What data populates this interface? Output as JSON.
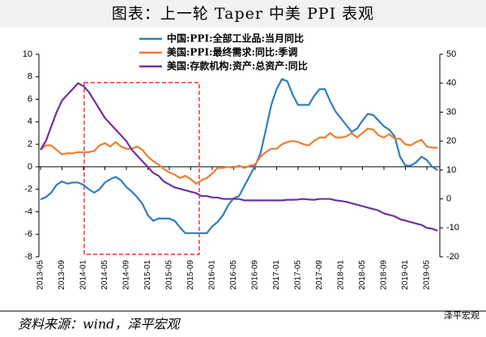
{
  "chart_data": {
    "type": "line",
    "title": "图表：上一轮 Taper 中美 PPI 表观",
    "source": "资料来源：wind，泽平宏观",
    "watermark": "泽平宏观",
    "categories": [
      "2013-05",
      null,
      null,
      null,
      "2013-09",
      null,
      null,
      null,
      "2014-01",
      null,
      null,
      null,
      "2014-05",
      null,
      null,
      null,
      "2014-09",
      null,
      null,
      null,
      "2015-01",
      null,
      null,
      null,
      "2015-05",
      null,
      null,
      null,
      "2015-09",
      null,
      null,
      null,
      "2016-01",
      null,
      null,
      null,
      "2016-05",
      null,
      null,
      null,
      "2016-09",
      null,
      null,
      null,
      "2017-01",
      null,
      null,
      null,
      "2017-05",
      null,
      null,
      null,
      "2017-09",
      null,
      null,
      null,
      "2018-01",
      null,
      null,
      null,
      "2018-05",
      null,
      null,
      null,
      "2018-09",
      null,
      null,
      null,
      "2019-01",
      null,
      null,
      null,
      "2019-05",
      null,
      null
    ],
    "series": [
      {
        "name": "中国:PPI:全部工业品:当月同比",
        "color": "#2e7ebf",
        "values": [
          -2.9,
          -2.7,
          -2.3,
          -1.6,
          -1.3,
          -1.5,
          -1.4,
          -1.4,
          -1.6,
          -2.0,
          -2.3,
          -2.0,
          -1.4,
          -1.1,
          -0.9,
          -1.2,
          -1.8,
          -2.2,
          -2.7,
          -3.3,
          -4.3,
          -4.8,
          -4.6,
          -4.6,
          -4.6,
          -4.8,
          -5.4,
          -5.9,
          -5.9,
          -5.9,
          -5.9,
          -5.9,
          -5.3,
          -4.9,
          -4.3,
          -3.4,
          -2.8,
          -2.6,
          -1.7,
          -0.8,
          0.1,
          1.2,
          3.3,
          5.5,
          6.9,
          7.8,
          7.6,
          6.4,
          5.5,
          5.5,
          5.5,
          6.3,
          6.9,
          6.9,
          5.8,
          4.9,
          4.3,
          3.7,
          3.1,
          3.4,
          4.1,
          4.7,
          4.6,
          4.1,
          3.6,
          3.3,
          2.7,
          0.9,
          0.1,
          0.1,
          0.4,
          0.9,
          0.6,
          0.0,
          -0.3
        ]
      },
      {
        "name": "美国:PPI:最终需求:同比:季调",
        "color": "#ed7d31",
        "values": [
          1.5,
          1.9,
          1.9,
          1.5,
          1.1,
          1.2,
          1.2,
          1.3,
          1.3,
          1.3,
          1.4,
          1.9,
          2.1,
          1.8,
          2.2,
          1.8,
          1.6,
          1.6,
          1.8,
          1.5,
          0.9,
          0.5,
          0.2,
          -0.2,
          -0.5,
          -0.7,
          -1.0,
          -0.8,
          -1.1,
          -1.5,
          -1.2,
          -1.0,
          -0.6,
          -0.1,
          -0.1,
          0.0,
          -0.1,
          0.1,
          -0.1,
          0.1,
          0.2,
          0.9,
          1.3,
          1.6,
          1.6,
          2.0,
          2.2,
          2.3,
          2.2,
          2.0,
          1.9,
          2.3,
          2.6,
          2.6,
          3.0,
          2.6,
          2.6,
          2.7,
          3.0,
          2.6,
          3.0,
          3.4,
          3.3,
          2.8,
          2.6,
          2.9,
          2.5,
          2.5,
          2.0,
          1.9,
          2.2,
          2.4,
          1.8,
          1.7,
          1.7
        ]
      },
      {
        "name": "美国:存款机构:资产:总资产:同比",
        "color": "#7030a0",
        "axis": "y2",
        "values": [
          17,
          20,
          25,
          30,
          34,
          36,
          38,
          40,
          39,
          37,
          34,
          31,
          28,
          26,
          24,
          22,
          20,
          17,
          15,
          13,
          11,
          9,
          8,
          6,
          5,
          4,
          3.5,
          3,
          2.5,
          2,
          1,
          1,
          0.5,
          0.5,
          0,
          0,
          0,
          0,
          -0.5,
          -0.5,
          -0.5,
          -0.5,
          -0.5,
          -0.5,
          -0.5,
          -0.5,
          -0.3,
          -0.3,
          -0.2,
          0,
          -0.2,
          -0.3,
          0,
          0,
          0,
          -0.5,
          -0.7,
          -1,
          -1.5,
          -2,
          -2.5,
          -3,
          -3.5,
          -4,
          -5,
          -5.5,
          -6,
          -7,
          -7.5,
          -8,
          -8.5,
          -9,
          -10,
          -10.3,
          -11
        ]
      }
    ],
    "ylim": [
      -8,
      10
    ],
    "yticks": [
      -8,
      -6,
      -4,
      -2,
      0,
      2,
      4,
      6,
      8,
      10
    ],
    "y2lim": [
      -20,
      50
    ],
    "y2ticks": [
      -20,
      -10,
      0,
      10,
      20,
      30,
      40,
      50
    ]
  }
}
